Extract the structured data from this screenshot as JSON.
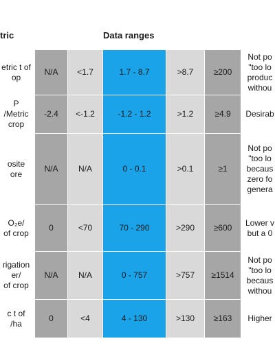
{
  "header": {
    "metric_label": "tric",
    "ranges_label": "Data ranges"
  },
  "rows": [
    {
      "metric": [
        "etric t of",
        "op"
      ],
      "values": [
        "N/A",
        "<1.7",
        "1.7 - 8.7",
        ">8.7",
        "≥200"
      ],
      "note": [
        "Not po",
        "\"too lo",
        "produc",
        "withou"
      ]
    },
    {
      "metric": [
        "P",
        "/Metric",
        "crop"
      ],
      "values": [
        "-2.4",
        "<-1.2",
        "-1.2 - 1.2",
        ">1.2",
        "≥4.9"
      ],
      "note": [
        "Desirab"
      ]
    },
    {
      "metric": [
        "osite",
        "ore"
      ],
      "values": [
        "N/A",
        "N/A",
        "0 - 0.1",
        ">0.1",
        "≥1"
      ],
      "note": [
        "Not po",
        "\"too lo",
        "becaus",
        "zero fo",
        "genera"
      ]
    },
    {
      "metric": [
        "O₂e/",
        "of crop"
      ],
      "values": [
        "0",
        "<70",
        "70 - 290",
        ">290",
        "≥600"
      ],
      "note": [
        "Lower v",
        "but a 0"
      ]
    },
    {
      "metric": [
        "rigation",
        "er/",
        "of crop"
      ],
      "values": [
        "N/A",
        "N/A",
        "0 - 757",
        ">757",
        "≥1514"
      ],
      "note": [
        "Not po",
        "\"too lo",
        "becaus",
        "withou"
      ]
    },
    {
      "metric": [
        "c t of",
        "/ha"
      ],
      "values": [
        "0",
        "<4",
        "4 - 130",
        ">130",
        "≥163"
      ],
      "note": [
        "Higher"
      ]
    }
  ]
}
